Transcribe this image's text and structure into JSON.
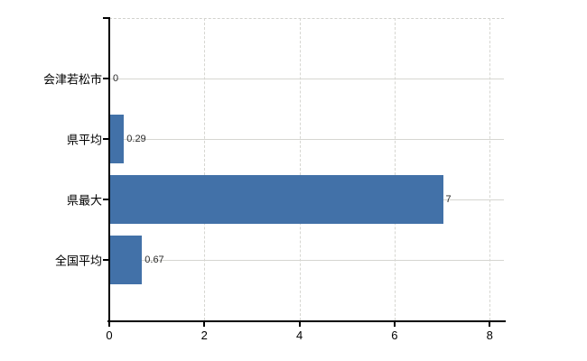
{
  "chart_data": {
    "type": "bar",
    "orientation": "horizontal",
    "title": "",
    "xlabel": "",
    "ylabel": "",
    "categories": [
      "会津若松市",
      "県平均",
      "県最大",
      "全国平均"
    ],
    "values": [
      0,
      0.29,
      7,
      0.67
    ],
    "value_labels": [
      "0",
      "0.29",
      "7",
      "0.67"
    ],
    "x_tick_labels": [
      "0",
      "2",
      "4",
      "6",
      "8"
    ],
    "x_tick_values": [
      0,
      2,
      4,
      6,
      8
    ],
    "xlim": [
      0,
      8.3
    ],
    "grid": true,
    "legend": false,
    "bar_color": "#4271A8",
    "grid_color": "#d6d6d1",
    "axis_color": "#000000",
    "background_color": "#ffffff"
  }
}
